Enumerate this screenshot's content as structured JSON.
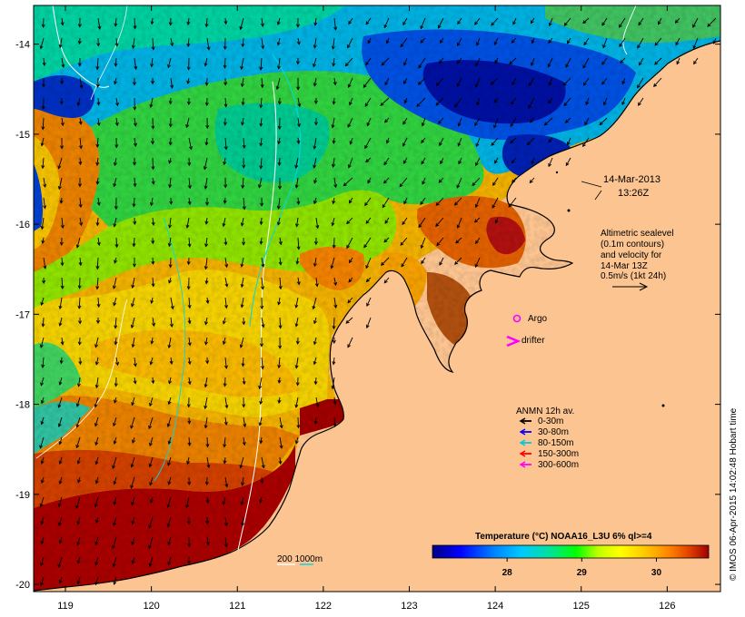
{
  "map": {
    "lon_ticks": [
      "119",
      "120",
      "121",
      "122",
      "123",
      "124",
      "125",
      "126"
    ],
    "lat_ticks": [
      "-14",
      "-15",
      "-16",
      "-17",
      "-18",
      "-19",
      "-20"
    ],
    "lon_range": [
      118.63,
      126.62
    ],
    "lat_range": [
      -20.08,
      -13.57
    ]
  },
  "annotations": {
    "date": "14-Mar-2013",
    "time": "13:26Z",
    "altimetry_lines": [
      "Altimetric sealevel",
      "(0.1m contours)",
      "and velocity for",
      "14-Mar 13Z",
      "0.5m/s (1kt 24h)"
    ],
    "argo_label": "Argo",
    "drifter_label": "drifter",
    "depth_contours": "200  1000m",
    "credit": "© IMOS 06-Apr-2015 14:02:48 Hobart time"
  },
  "legend": {
    "title": "ANMN 12h av.",
    "items": [
      {
        "label": "0-30m",
        "color": "#000000"
      },
      {
        "label": "30-80m",
        "color": "#0000ff"
      },
      {
        "label": "80-150m",
        "color": "#00c8d8"
      },
      {
        "label": "150-300m",
        "color": "#ff0000"
      },
      {
        "label": "300-600m",
        "color": "#ff00ff"
      }
    ]
  },
  "colorbar": {
    "title": "Temperature (°C) NOAA16_L3U 6% ql>=4",
    "range": [
      27.0,
      30.7
    ],
    "ticks": [
      "28",
      "29",
      "30"
    ],
    "colors": [
      "#000080",
      "#0000ff",
      "#0080ff",
      "#00c8ff",
      "#00e0a0",
      "#00ff00",
      "#c0ff00",
      "#ffff00",
      "#ffc000",
      "#ff8000",
      "#e04000",
      "#a00000"
    ]
  }
}
